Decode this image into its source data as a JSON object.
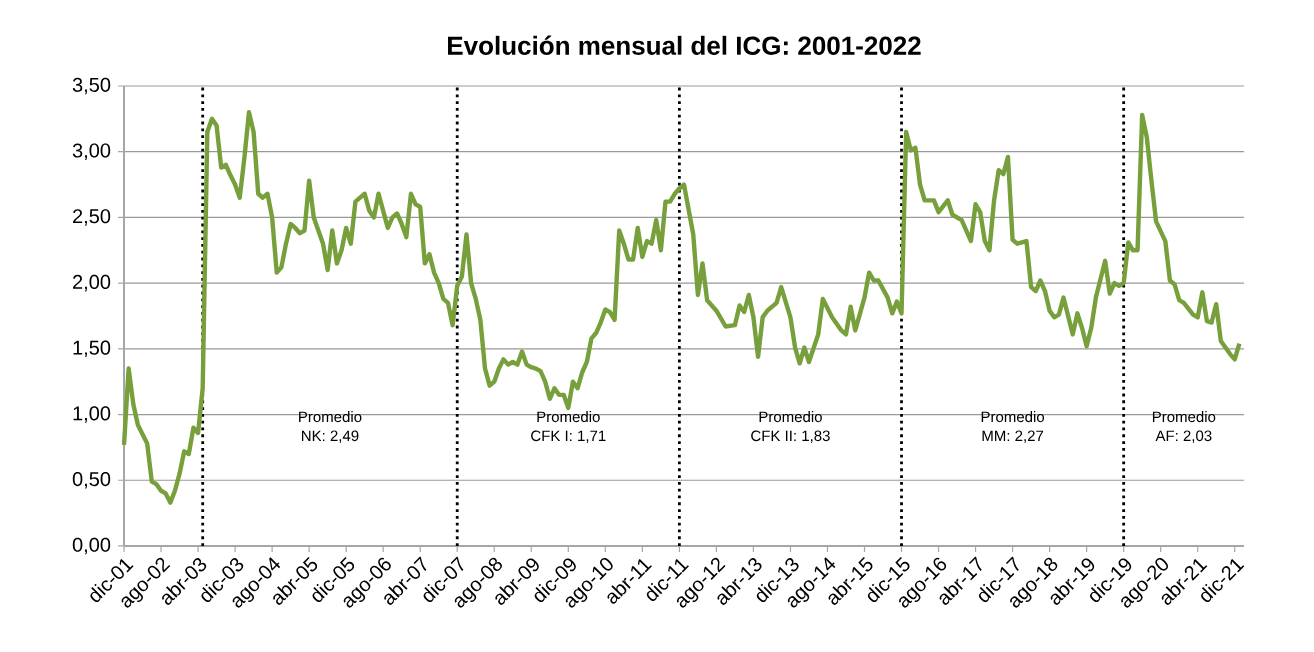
{
  "chart_data": {
    "type": "line",
    "title": "Evolución mensual del ICG: 2001-2022",
    "color": "#77a03c",
    "line_style": "solid",
    "grid": "y",
    "x": [
      "2001-12",
      "2002-01",
      "2002-02",
      "2002-03",
      "2002-04",
      "2002-05",
      "2002-06",
      "2002-07",
      "2002-08",
      "2002-09",
      "2002-10",
      "2002-11",
      "2002-12",
      "2003-01",
      "2003-02",
      "2003-03",
      "2003-04",
      "2003-05",
      "2003-06",
      "2003-07",
      "2003-08",
      "2003-09",
      "2003-10",
      "2003-11",
      "2003-12",
      "2004-01",
      "2004-02",
      "2004-03",
      "2004-04",
      "2004-05",
      "2004-06",
      "2004-07",
      "2004-08",
      "2004-09",
      "2004-10",
      "2004-11",
      "2004-12",
      "2005-01",
      "2005-02",
      "2005-03",
      "2005-04",
      "2005-05",
      "2005-06",
      "2005-07",
      "2005-08",
      "2005-09",
      "2005-10",
      "2005-11",
      "2005-12",
      "2006-01",
      "2006-02",
      "2006-03",
      "2006-04",
      "2006-05",
      "2006-06",
      "2006-07",
      "2006-08",
      "2006-09",
      "2006-10",
      "2006-11",
      "2006-12",
      "2007-01",
      "2007-02",
      "2007-03",
      "2007-04",
      "2007-05",
      "2007-06",
      "2007-07",
      "2007-08",
      "2007-09",
      "2007-10",
      "2007-11",
      "2007-12",
      "2008-01",
      "2008-02",
      "2008-03",
      "2008-04",
      "2008-05",
      "2008-06",
      "2008-07",
      "2008-08",
      "2008-09",
      "2008-10",
      "2008-11",
      "2008-12",
      "2009-01",
      "2009-02",
      "2009-03",
      "2009-04",
      "2009-05",
      "2009-06",
      "2009-07",
      "2009-08",
      "2009-09",
      "2009-10",
      "2009-11",
      "2009-12",
      "2010-01",
      "2010-02",
      "2010-03",
      "2010-04",
      "2010-05",
      "2010-06",
      "2010-07",
      "2010-08",
      "2010-09",
      "2010-10",
      "2010-11",
      "2010-12",
      "2011-01",
      "2011-02",
      "2011-03",
      "2011-04",
      "2011-05",
      "2011-06",
      "2011-07",
      "2011-08",
      "2011-09",
      "2011-10",
      "2011-11",
      "2011-12",
      "2012-01",
      "2012-03",
      "2012-04",
      "2012-05",
      "2012-06",
      "2012-08",
      "2012-10",
      "2012-12",
      "2013-01",
      "2013-02",
      "2013-03",
      "2013-04",
      "2013-05",
      "2013-06",
      "2013-07",
      "2013-09",
      "2013-10",
      "2013-12",
      "2014-01",
      "2014-02",
      "2014-03",
      "2014-04",
      "2014-06",
      "2014-07",
      "2014-09",
      "2014-11",
      "2014-12",
      "2015-01",
      "2015-02",
      "2015-04",
      "2015-05",
      "2015-06",
      "2015-07",
      "2015-09",
      "2015-10",
      "2015-11",
      "2015-12",
      "2016-01",
      "2016-02",
      "2016-03",
      "2016-04",
      "2016-05",
      "2016-07",
      "2016-08",
      "2016-10",
      "2016-11",
      "2017-01",
      "2017-02",
      "2017-03",
      "2017-04",
      "2017-05",
      "2017-06",
      "2017-07",
      "2017-08",
      "2017-09",
      "2017-10",
      "2017-11",
      "2017-12",
      "2018-01",
      "2018-03",
      "2018-04",
      "2018-05",
      "2018-06",
      "2018-07",
      "2018-08",
      "2018-09",
      "2018-10",
      "2018-11",
      "2019-01",
      "2019-02",
      "2019-03",
      "2019-04",
      "2019-05",
      "2019-06",
      "2019-08",
      "2019-09",
      "2019-10",
      "2019-11",
      "2019-12",
      "2020-01",
      "2020-02",
      "2020-03",
      "2020-04",
      "2020-05",
      "2020-06",
      "2020-07",
      "2020-09",
      "2020-10",
      "2020-11",
      "2020-12",
      "2021-01",
      "2021-03",
      "2021-04",
      "2021-05",
      "2021-06",
      "2021-07",
      "2021-08",
      "2021-09",
      "2021-11",
      "2021-12",
      "2022-01"
    ],
    "values": [
      0.77,
      1.35,
      1.08,
      0.92,
      0.85,
      0.78,
      0.49,
      0.47,
      0.42,
      0.4,
      0.33,
      0.42,
      0.55,
      0.72,
      0.7,
      0.9,
      0.86,
      1.2,
      3.15,
      3.25,
      3.2,
      2.88,
      2.9,
      2.82,
      2.75,
      2.65,
      2.95,
      3.3,
      3.15,
      2.68,
      2.65,
      2.68,
      2.5,
      2.08,
      2.12,
      2.3,
      2.45,
      2.42,
      2.38,
      2.4,
      2.78,
      2.5,
      2.4,
      2.3,
      2.1,
      2.4,
      2.15,
      2.25,
      2.42,
      2.3,
      2.62,
      2.65,
      2.68,
      2.55,
      2.5,
      2.68,
      2.55,
      2.42,
      2.5,
      2.53,
      2.45,
      2.35,
      2.68,
      2.6,
      2.58,
      2.15,
      2.22,
      2.08,
      2.0,
      1.88,
      1.85,
      1.68,
      1.98,
      2.05,
      2.37,
      2.0,
      1.88,
      1.72,
      1.35,
      1.22,
      1.25,
      1.35,
      1.42,
      1.38,
      1.4,
      1.38,
      1.48,
      1.38,
      1.36,
      1.35,
      1.33,
      1.25,
      1.12,
      1.2,
      1.15,
      1.15,
      1.05,
      1.25,
      1.2,
      1.32,
      1.4,
      1.58,
      1.62,
      1.7,
      1.8,
      1.78,
      1.72,
      2.4,
      2.3,
      2.18,
      2.18,
      2.42,
      2.2,
      2.32,
      2.3,
      2.48,
      2.25,
      2.62,
      2.62,
      2.68,
      2.72,
      2.75,
      2.37,
      1.91,
      2.15,
      1.87,
      1.79,
      1.67,
      1.68,
      1.83,
      1.78,
      1.91,
      1.74,
      1.44,
      1.74,
      1.79,
      1.85,
      1.97,
      1.74,
      1.51,
      1.39,
      1.51,
      1.4,
      1.61,
      1.88,
      1.74,
      1.64,
      1.61,
      1.82,
      1.64,
      1.89,
      2.08,
      2.02,
      2.02,
      1.89,
      1.77,
      1.86,
      1.77,
      3.15,
      3.01,
      3.03,
      2.75,
      2.63,
      2.63,
      2.54,
      2.63,
      2.52,
      2.48,
      2.4,
      2.32,
      2.6,
      2.54,
      2.32,
      2.25,
      2.63,
      2.86,
      2.83,
      2.96,
      2.33,
      2.3,
      2.32,
      1.97,
      1.94,
      2.02,
      1.94,
      1.79,
      1.74,
      1.76,
      1.89,
      1.61,
      1.77,
      1.66,
      1.52,
      1.66,
      1.89,
      2.17,
      1.92,
      2.0,
      1.98,
      2.0,
      2.31,
      2.25,
      2.25,
      3.28,
      3.11,
      2.78,
      2.47,
      2.32,
      2.02,
      1.99,
      1.87,
      1.85,
      1.76,
      1.74,
      1.93,
      1.71,
      1.7,
      1.84,
      1.56,
      1.46,
      1.42,
      1.54
    ],
    "xlim": [
      "2001-12",
      "2022-02"
    ],
    "xticks": [
      {
        "value": "2001-12",
        "label": "dic-01"
      },
      {
        "value": "2002-08",
        "label": "ago-02"
      },
      {
        "value": "2003-04",
        "label": "abr-03"
      },
      {
        "value": "2003-12",
        "label": "dic-03"
      },
      {
        "value": "2004-08",
        "label": "ago-04"
      },
      {
        "value": "2005-04",
        "label": "abr-05"
      },
      {
        "value": "2005-12",
        "label": "dic-05"
      },
      {
        "value": "2006-08",
        "label": "ago-06"
      },
      {
        "value": "2007-04",
        "label": "abr-07"
      },
      {
        "value": "2007-12",
        "label": "dic-07"
      },
      {
        "value": "2008-08",
        "label": "ago-08"
      },
      {
        "value": "2009-04",
        "label": "abr-09"
      },
      {
        "value": "2009-12",
        "label": "dic-09"
      },
      {
        "value": "2010-08",
        "label": "ago-10"
      },
      {
        "value": "2011-04",
        "label": "abr-11"
      },
      {
        "value": "2011-12",
        "label": "dic-11"
      },
      {
        "value": "2012-08",
        "label": "ago-12"
      },
      {
        "value": "2013-04",
        "label": "abr-13"
      },
      {
        "value": "2013-12",
        "label": "dic-13"
      },
      {
        "value": "2014-08",
        "label": "ago-14"
      },
      {
        "value": "2015-04",
        "label": "abr-15"
      },
      {
        "value": "2015-12",
        "label": "dic-15"
      },
      {
        "value": "2016-08",
        "label": "ago-16"
      },
      {
        "value": "2017-04",
        "label": "abr-17"
      },
      {
        "value": "2017-12",
        "label": "dic-17"
      },
      {
        "value": "2018-08",
        "label": "ago-18"
      },
      {
        "value": "2019-04",
        "label": "abr-19"
      },
      {
        "value": "2019-12",
        "label": "dic-19"
      },
      {
        "value": "2020-08",
        "label": "ago-20"
      },
      {
        "value": "2021-04",
        "label": "abr-21"
      },
      {
        "value": "2021-12",
        "label": "dic-21"
      }
    ],
    "ylim": [
      0,
      3.5
    ],
    "yticks": [
      {
        "value": 0,
        "label": "0,00"
      },
      {
        "value": 0.5,
        "label": "0,50"
      },
      {
        "value": 1,
        "label": "1,00"
      },
      {
        "value": 1.5,
        "label": "1,50"
      },
      {
        "value": 2,
        "label": "2,00"
      },
      {
        "value": 2.5,
        "label": "2,50"
      },
      {
        "value": 3,
        "label": "3,00"
      },
      {
        "value": 3.5,
        "label": "3,50"
      }
    ],
    "ref_lines": [
      {
        "axis": "x",
        "value": "2003-05",
        "color": "#000000",
        "line_style": "dotted"
      },
      {
        "axis": "x",
        "value": "2007-12",
        "color": "#000000",
        "line_style": "dotted"
      },
      {
        "axis": "x",
        "value": "2011-12",
        "color": "#000000",
        "line_style": "dotted"
      },
      {
        "axis": "x",
        "value": "2015-12",
        "color": "#000000",
        "line_style": "dotted"
      },
      {
        "axis": "x",
        "value": "2019-12",
        "color": "#000000",
        "line_style": "dotted"
      }
    ],
    "annotations": [
      "Promedio",
      "NK: 2,49",
      "Promedio",
      "CFK I: 1,71",
      "Promedio",
      "CFK II: 1,83",
      "Promedio",
      "MM: 2,27",
      "Promedio",
      "AF: 2,03"
    ]
  }
}
